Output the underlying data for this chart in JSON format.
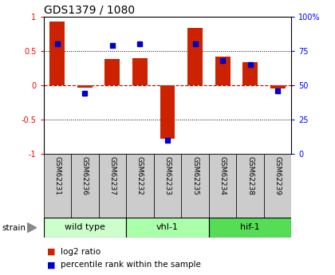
{
  "title": "GDS1379 / 1080",
  "samples": [
    "GSM62231",
    "GSM62236",
    "GSM62237",
    "GSM62232",
    "GSM62233",
    "GSM62235",
    "GSM62234",
    "GSM62238",
    "GSM62239"
  ],
  "log2_ratio": [
    0.93,
    -0.04,
    0.38,
    0.39,
    -0.78,
    0.84,
    0.42,
    0.34,
    -0.05
  ],
  "percentile_rank": [
    80,
    44,
    79,
    80,
    10,
    80,
    68,
    65,
    46
  ],
  "groups": [
    {
      "label": "wild type",
      "start": 0,
      "end": 3,
      "color": "#ccffcc"
    },
    {
      "label": "vhl-1",
      "start": 3,
      "end": 6,
      "color": "#aaffaa"
    },
    {
      "label": "hif-1",
      "start": 6,
      "end": 9,
      "color": "#55dd55"
    }
  ],
  "bar_color": "#cc2200",
  "dot_color": "#0000cc",
  "ylim_left": [
    -1,
    1
  ],
  "ylim_right": [
    0,
    100
  ],
  "yticks_left": [
    -1,
    -0.5,
    0,
    0.5,
    1
  ],
  "yticks_right": [
    0,
    25,
    50,
    75,
    100
  ],
  "hline_color": "#cc0000",
  "grid_color": "#000000",
  "bg_color": "#ffffff",
  "bar_width": 0.55,
  "label_bg_color": "#cccccc",
  "legend_labels": [
    "log2 ratio",
    "percentile rank within the sample"
  ],
  "legend_colors": [
    "#cc2200",
    "#0000cc"
  ]
}
